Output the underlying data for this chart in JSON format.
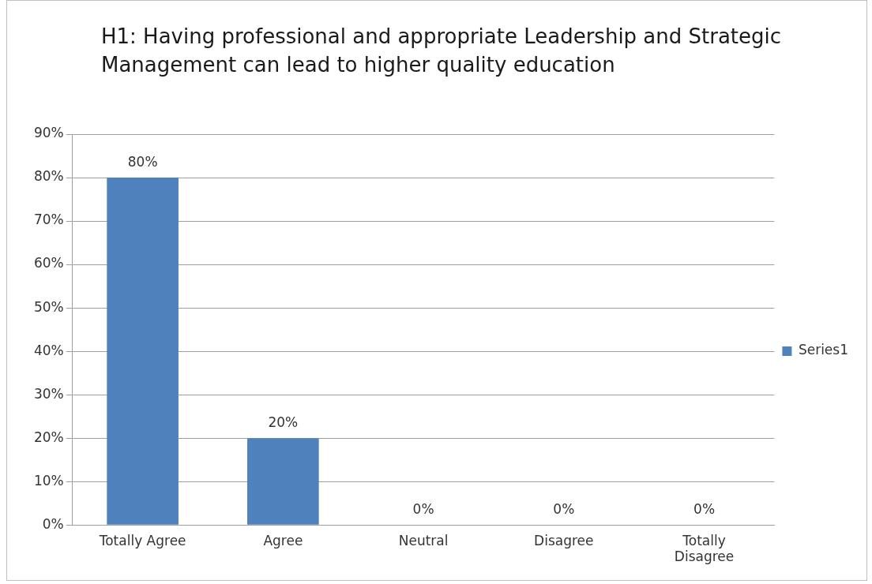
{
  "chart_data": {
    "type": "bar",
    "title": "H1: Having professional and appropriate Leadership and Strategic Management can lead to higher quality education",
    "categories": [
      "Totally Agree",
      "Agree",
      "Neutral",
      "Disagree",
      "Totally Disagree"
    ],
    "series": [
      {
        "name": "Series1",
        "color": "#4f81bd",
        "values": [
          80,
          20,
          0,
          0,
          0
        ],
        "value_labels": [
          "80%",
          "20%",
          "0%",
          "0%",
          "0%"
        ]
      }
    ],
    "ylim": [
      0,
      90
    ],
    "yticks": [
      {
        "value": 0,
        "label": "0%"
      },
      {
        "value": 10,
        "label": "10%"
      },
      {
        "value": 20,
        "label": "20%"
      },
      {
        "value": 30,
        "label": "30%"
      },
      {
        "value": 40,
        "label": "40%"
      },
      {
        "value": 50,
        "label": "50%"
      },
      {
        "value": 60,
        "label": "60%"
      },
      {
        "value": 70,
        "label": "70%"
      },
      {
        "value": 80,
        "label": "80%"
      },
      {
        "value": 90,
        "label": "90%"
      }
    ],
    "grid": "y",
    "legend": "right"
  }
}
